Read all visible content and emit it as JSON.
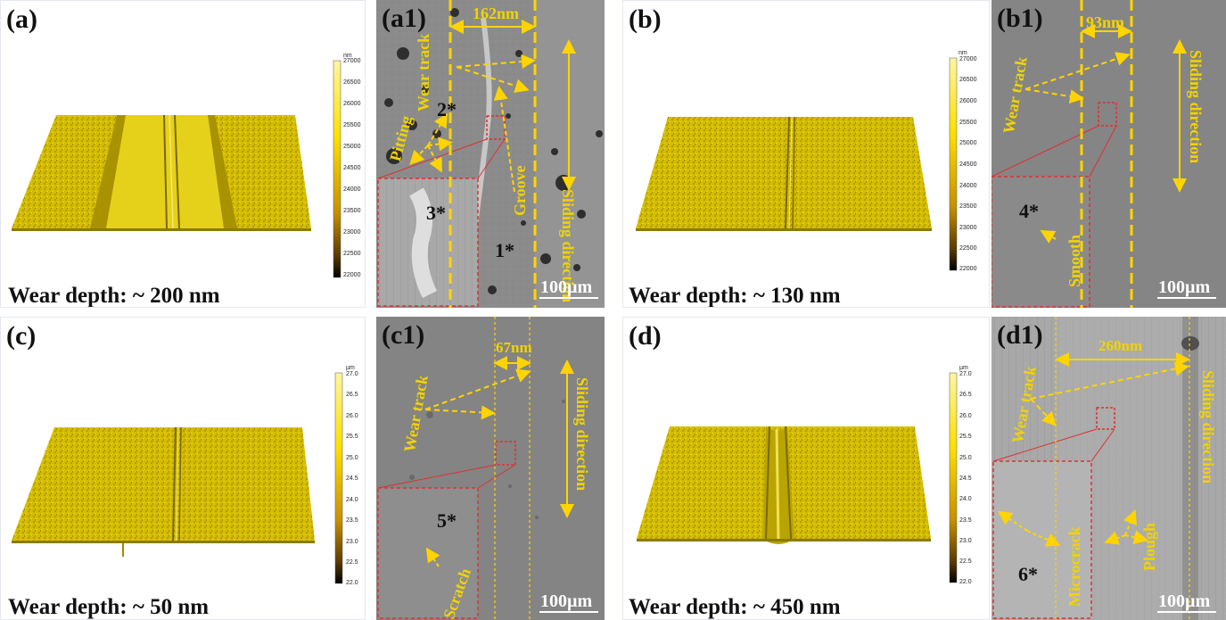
{
  "colors": {
    "track_yellow": "#ffd400",
    "surface_yellow": "#d8c000",
    "sem_gray": "#8a8a8a",
    "inset_border": "#e03030"
  },
  "panels": {
    "a": {
      "label": "(a)",
      "wear_depth": "Wear depth: ~ 200 nm",
      "colorbar": {
        "unit": "nm",
        "ticks": [
          "27000",
          "26500",
          "26000",
          "25500",
          "25000",
          "24500",
          "24000",
          "23500",
          "23000",
          "22500",
          "22000"
        ]
      }
    },
    "a1": {
      "label": "(a1)",
      "width_label": "162nm",
      "wear_track": "Wear track",
      "pitting": "Pitting",
      "groove": "Groove",
      "direction": "Sliding direction",
      "scale": "100µm",
      "spots": [
        "1*",
        "2*",
        "3*"
      ]
    },
    "b": {
      "label": "(b)",
      "wear_depth": "Wear depth: ~ 130 nm",
      "colorbar": {
        "unit": "nm",
        "ticks": [
          "27000",
          "26500",
          "26000",
          "25500",
          "25000",
          "24500",
          "24000",
          "23500",
          "23000",
          "22500",
          "22000"
        ]
      }
    },
    "b1": {
      "label": "(b1)",
      "width_label": "93nm",
      "wear_track": "Wear track",
      "smooth": "Smooth",
      "direction": "Sliding direction",
      "scale": "100µm",
      "spots": [
        "4*"
      ]
    },
    "c": {
      "label": "(c)",
      "wear_depth": "Wear depth: ~ 50 nm",
      "colorbar": {
        "unit": "µm",
        "ticks": [
          "27.0",
          "26.5",
          "26.0",
          "25.5",
          "25.0",
          "24.5",
          "24.0",
          "23.5",
          "23.0",
          "22.5",
          "22.0"
        ]
      }
    },
    "c1": {
      "label": "(c1)",
      "width_label": "67nm",
      "wear_track": "Wear track",
      "scratch": "Scratch",
      "direction": "Sliding direction",
      "scale": "100µm",
      "spots": [
        "5*"
      ]
    },
    "d": {
      "label": "(d)",
      "wear_depth": "Wear depth: ~ 450 nm",
      "colorbar": {
        "unit": "µm",
        "ticks": [
          "27.0",
          "26.5",
          "26.0",
          "25.5",
          "25.0",
          "24.5",
          "24.0",
          "23.5",
          "23.0",
          "22.5",
          "22.0"
        ]
      }
    },
    "d1": {
      "label": "(d1)",
      "width_label": "260nm",
      "wear_track": "Wear track",
      "microcrack": "Microcrack",
      "plough": "Plough",
      "direction": "Sliding direction",
      "scale": "100µm",
      "spots": [
        "6*"
      ]
    }
  }
}
